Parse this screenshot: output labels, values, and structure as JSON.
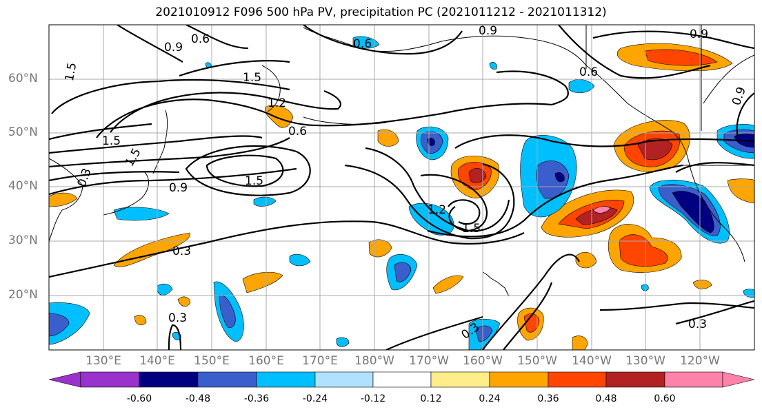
{
  "title": "2021010912 F096 500 hPa PV, precipitation PC (2021011212 - 2021011312)",
  "lat_labels": [
    "60°N",
    "50°N",
    "40°N",
    "30°N",
    "20°N"
  ],
  "lon_labels": [
    "130°E",
    "140°E",
    "150°E",
    "160°E",
    "170°E",
    "180°W",
    "170°W",
    "160°W",
    "150°W",
    "140°W",
    "130°W",
    "120°W"
  ],
  "colorbar": {
    "ticks": [
      "-0.60",
      "-0.48",
      "-0.36",
      "-0.24",
      "-0.12",
      "0.12",
      "0.24",
      "0.36",
      "0.48",
      "0.60"
    ],
    "colors": [
      "#9933cc",
      "#000080",
      "#3a5fcd",
      "#00bfff",
      "#b0e2ff",
      "#ffffff",
      "#ffec8b",
      "#ffa500",
      "#ff4500",
      "#b22222",
      "#ff82ab"
    ]
  },
  "contour_labels": [
    "0.9",
    "0.6",
    "0.6",
    "0.9",
    "0.9",
    "1.5",
    "1.5",
    "1.5",
    "1.5",
    "1.2",
    "0.6",
    "0.9",
    "1.5",
    "1.2",
    "1.5",
    "0.3",
    "0.3",
    "0.3",
    "0.3",
    "0.6",
    "0.9",
    "0.3"
  ]
}
